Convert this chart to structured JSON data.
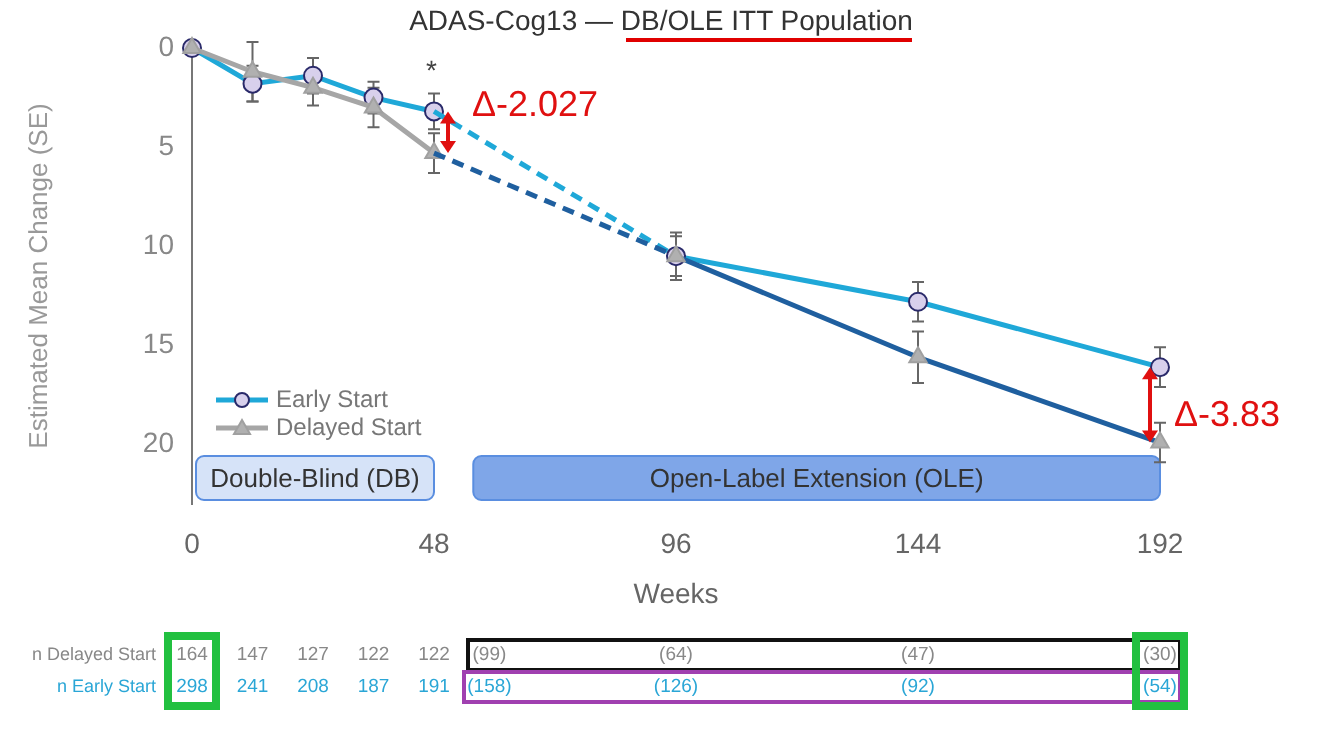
{
  "chart_data": {
    "type": "line",
    "title": "ADAS-Cog13 — DB/OLE ITT Population",
    "xlabel": "Weeks",
    "ylabel": "Estimated Mean Change (SE)",
    "xlim": [
      0,
      192
    ],
    "xticks": [
      0,
      48,
      96,
      144,
      192
    ],
    "ylim": [
      23,
      0
    ],
    "yticks": [
      0,
      5,
      10,
      15,
      20
    ],
    "legend": "bottom left",
    "series": [
      {
        "name": "Early Start",
        "color": "#1fa8d8",
        "marker": "circle",
        "x": [
          0,
          12,
          24,
          36,
          48
        ],
        "values": [
          0,
          1.8,
          1.4,
          2.5,
          3.2
        ],
        "errors": [
          null,
          0.9,
          0.9,
          0.8,
          0.9
        ]
      },
      {
        "name": "Delayed Start",
        "color": "#a6a6a6",
        "marker": "triangle",
        "x": [
          0,
          12,
          24,
          36,
          48
        ],
        "values": [
          0,
          1.2,
          2.0,
          3.0,
          5.3
        ],
        "errors": [
          null,
          1.5,
          0.9,
          1.0,
          1.0
        ]
      },
      {
        "color": "#1fa8d8",
        "line_style": "dashed",
        "x": [
          48,
          96
        ],
        "values": [
          3.2,
          10.5
        ]
      },
      {
        "color": "#1f5f9f",
        "line_style": "dashed",
        "x": [
          48,
          96
        ],
        "values": [
          5.3,
          10.5
        ]
      },
      {
        "color": "#1fa8d8",
        "marker": "circle",
        "x": [
          96,
          144,
          192
        ],
        "values": [
          10.5,
          12.8,
          16.1
        ],
        "errors": [
          1.2,
          1.0,
          1.0
        ]
      },
      {
        "color": "#1f5f9f",
        "x": [
          96,
          144,
          192
        ],
        "values": [
          10.5,
          15.6,
          19.9
        ]
      },
      {
        "type": "scatter",
        "color": "#a6a6a6",
        "marker": "triangle",
        "x": [
          96,
          144,
          192
        ],
        "values": [
          10.5,
          15.6,
          19.9
        ],
        "errors": [
          1.0,
          1.3,
          1.0
        ]
      }
    ],
    "bands": [
      {
        "axis": "x",
        "from": 0,
        "to": 48,
        "label": "Double-Blind (DB)",
        "color": "#d6e3f8"
      },
      {
        "axis": "x",
        "from": 55,
        "to": 192,
        "label": "Open-Label Extension (OLE)",
        "color": "#7fa6e8"
      }
    ],
    "annotations": [
      "*",
      {
        "text": "Δ-2.027",
        "x": 48,
        "y": 4.25
      },
      {
        "text": "Δ-3.83",
        "x": 192,
        "y": 19.9
      },
      "n Delayed Start\t164\t147\t127\t122\t122\t(99)\t(64)\t(47)\t(30)",
      "n Early Start\t298\t241\t208\t187\t191\t(158)\t(126)\t(92)\t(54)"
    ]
  }
}
